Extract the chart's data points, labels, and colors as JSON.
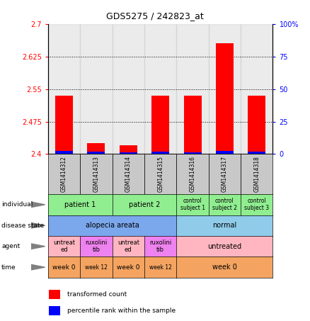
{
  "title": "GDS5275 / 242823_at",
  "samples": [
    "GSM1414312",
    "GSM1414313",
    "GSM1414314",
    "GSM1414315",
    "GSM1414316",
    "GSM1414317",
    "GSM1414318"
  ],
  "red_values": [
    2.535,
    2.425,
    2.42,
    2.535,
    2.535,
    2.655,
    2.535
  ],
  "blue_values": [
    2.408,
    2.405,
    2.404,
    2.405,
    2.404,
    2.408,
    2.406
  ],
  "ymin": 2.4,
  "ymax": 2.7,
  "yticks": [
    2.4,
    2.475,
    2.55,
    2.625,
    2.7
  ],
  "ytick_labels": [
    "2.4",
    "2.475",
    "2.55",
    "2.625",
    "2.7"
  ],
  "right_yticks": [
    0,
    25,
    50,
    75,
    100
  ],
  "right_ytick_labels": [
    "0",
    "25",
    "50",
    "75",
    "100%"
  ],
  "dotted_lines": [
    2.475,
    2.55,
    2.625
  ],
  "individual_color": "#90EE90",
  "individual_color_dark": "#4CAF50",
  "disease_color_alopecia": "#7BA7EC",
  "disease_color_normal": "#90CCEA",
  "agent_color_untreated": "#FFB6C1",
  "agent_color_ruxolini": "#EE82EE",
  "time_color": "#F4A460",
  "sample_bg_color": "#C8C8C8",
  "legend_red": "transformed count",
  "legend_blue": "percentile rank within the sample"
}
